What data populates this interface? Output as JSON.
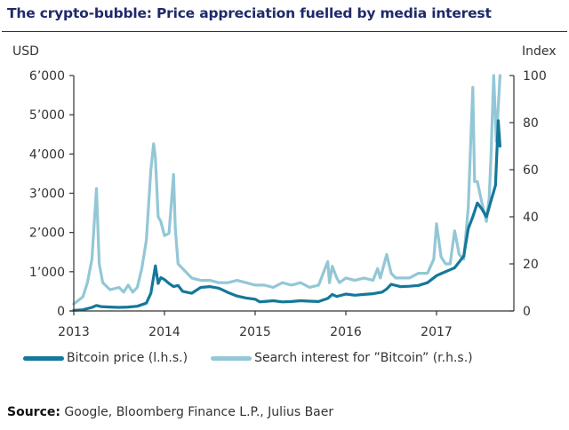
{
  "title": "The crypto-bubble: Price appreciation fuelled by media interest",
  "source_label": "Source:",
  "source_text": "Google, Bloomberg Finance L.P., Julius Baer",
  "colors": {
    "title": "#1f2a6b",
    "bitcoin_price": "#14789a",
    "search_interest": "#93c7d6",
    "axis": "#333333"
  },
  "chart_data": {
    "type": "line",
    "title": "The crypto-bubble: Price appreciation fuelled by media interest",
    "xlabel": "",
    "ylabel_left": "USD",
    "ylabel_right": "Index",
    "xlim": [
      2013.0,
      2017.72
    ],
    "ylim_left": [
      0,
      6000
    ],
    "ylim_right": [
      0,
      100
    ],
    "x_ticks": [
      2013,
      2014,
      2015,
      2016,
      2017
    ],
    "x_tick_labels": [
      "2013",
      "2014",
      "2015",
      "2016",
      "2017"
    ],
    "y_left_ticks": [
      0,
      1000,
      2000,
      3000,
      4000,
      5000,
      6000
    ],
    "y_left_tick_labels": [
      "0",
      "1’000",
      "2’000",
      "3’000",
      "4’000",
      "5’000",
      "6’000"
    ],
    "y_right_ticks": [
      0,
      20,
      40,
      60,
      80,
      100
    ],
    "y_right_tick_labels": [
      "0",
      "20",
      "40",
      "60",
      "80",
      "100"
    ],
    "grid": false,
    "legend_position": "bottom",
    "series": [
      {
        "name": "Bitcoin price (l.h.s.)",
        "axis": "left",
        "x": [
          2013.0,
          2013.1,
          2013.2,
          2013.25,
          2013.3,
          2013.4,
          2013.5,
          2013.6,
          2013.7,
          2013.8,
          2013.85,
          2013.9,
          2013.93,
          2013.96,
          2014.0,
          2014.05,
          2014.1,
          2014.15,
          2014.2,
          2014.3,
          2014.4,
          2014.5,
          2014.6,
          2014.7,
          2014.8,
          2014.9,
          2015.0,
          2015.05,
          2015.1,
          2015.2,
          2015.3,
          2015.4,
          2015.5,
          2015.6,
          2015.7,
          2015.8,
          2015.85,
          2015.9,
          2016.0,
          2016.1,
          2016.2,
          2016.3,
          2016.4,
          2016.45,
          2016.5,
          2016.6,
          2016.7,
          2016.8,
          2016.9,
          2017.0,
          2017.05,
          2017.1,
          2017.2,
          2017.25,
          2017.3,
          2017.35,
          2017.4,
          2017.45,
          2017.5,
          2017.55,
          2017.6,
          2017.65,
          2017.68,
          2017.7
        ],
        "values": [
          15,
          30,
          90,
          140,
          110,
          100,
          90,
          100,
          120,
          200,
          450,
          1150,
          700,
          850,
          800,
          700,
          620,
          650,
          500,
          450,
          600,
          620,
          580,
          470,
          380,
          330,
          300,
          230,
          240,
          260,
          230,
          240,
          260,
          250,
          240,
          320,
          420,
          370,
          430,
          400,
          420,
          440,
          480,
          560,
          680,
          620,
          630,
          650,
          720,
          900,
          950,
          1000,
          1100,
          1250,
          1400,
          2100,
          2400,
          2750,
          2600,
          2400,
          2800,
          3200,
          4850,
          4200
        ]
      },
      {
        "name": "Search interest for \"Bitcoin\" (r.h.s.)",
        "axis": "right",
        "x": [
          2013.0,
          2013.1,
          2013.15,
          2013.2,
          2013.25,
          2013.28,
          2013.32,
          2013.4,
          2013.5,
          2013.55,
          2013.6,
          2013.65,
          2013.7,
          2013.75,
          2013.8,
          2013.85,
          2013.88,
          2013.9,
          2013.93,
          2013.96,
          2014.0,
          2014.05,
          2014.1,
          2014.12,
          2014.15,
          2014.2,
          2014.3,
          2014.4,
          2014.5,
          2014.6,
          2014.7,
          2014.8,
          2014.9,
          2015.0,
          2015.1,
          2015.2,
          2015.3,
          2015.4,
          2015.5,
          2015.6,
          2015.7,
          2015.8,
          2015.82,
          2015.85,
          2015.9,
          2015.93,
          2016.0,
          2016.1,
          2016.2,
          2016.3,
          2016.35,
          2016.38,
          2016.45,
          2016.5,
          2016.55,
          2016.6,
          2016.7,
          2016.8,
          2016.9,
          2016.97,
          2017.0,
          2017.05,
          2017.1,
          2017.15,
          2017.2,
          2017.25,
          2017.3,
          2017.35,
          2017.4,
          2017.42,
          2017.45,
          2017.5,
          2017.55,
          2017.58,
          2017.6,
          2017.63,
          2017.66,
          2017.7
        ],
        "values": [
          3,
          6,
          12,
          22,
          52,
          20,
          12,
          9,
          10,
          8,
          11,
          8,
          10,
          18,
          30,
          60,
          71,
          65,
          40,
          38,
          32,
          33,
          58,
          35,
          20,
          18,
          14,
          13,
          13,
          12,
          12,
          13,
          12,
          11,
          11,
          10,
          12,
          11,
          12,
          10,
          11,
          21,
          12,
          19,
          14,
          12,
          14,
          13,
          14,
          13,
          18,
          14,
          24,
          16,
          14,
          14,
          14,
          16,
          16,
          22,
          37,
          23,
          20,
          20,
          34,
          24,
          22,
          44,
          95,
          55,
          55,
          46,
          38,
          48,
          65,
          100,
          72,
          100
        ]
      }
    ]
  },
  "legend": [
    {
      "label": "Bitcoin price (l.h.s.)",
      "color": "#14789a"
    },
    {
      "label": "Search interest for ”Bitcoin” (r.h.s.)",
      "color": "#93c7d6"
    }
  ]
}
